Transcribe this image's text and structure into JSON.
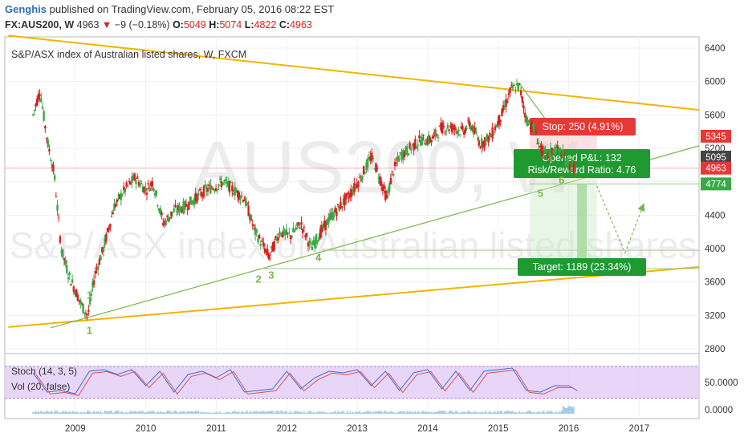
{
  "header": {
    "author": "Genghis",
    "published": "published on TradingView.com, February 05, 2016 08:22 EST",
    "symbol": "FX:AUS200, W",
    "last": "4963",
    "change": "−9 (−0.18%)",
    "o_label": "O:",
    "o": "5049",
    "h_label": "H:",
    "h": "5074",
    "l_label": "L:",
    "l": "4822",
    "c_label": "C:",
    "c": "4963"
  },
  "chart_data": {
    "type": "line",
    "title": "S&P/ASX index of Australian listed shares, W, FXCM",
    "watermark_symbol": "AUS200, W",
    "watermark_desc": "S&P/ASX index of Australian listed shares",
    "x_ticks": [
      "2009",
      "2010",
      "2011",
      "2012",
      "2013",
      "2014",
      "2015",
      "2016",
      "2017"
    ],
    "y_ticks": [
      "6400",
      "6000",
      "5600",
      "5200",
      "4800",
      "4400",
      "4000",
      "3600",
      "3200",
      "2800"
    ],
    "ylim": [
      2800,
      6400
    ],
    "price_series": {
      "x": [
        2008.4,
        2008.5,
        2008.6,
        2008.7,
        2008.8,
        2008.9,
        2009.0,
        2009.1,
        2009.18,
        2009.28,
        2009.4,
        2009.55,
        2009.7,
        2009.85,
        2010.0,
        2010.1,
        2010.25,
        2010.4,
        2010.55,
        2010.7,
        2010.85,
        2011.0,
        2011.1,
        2011.25,
        2011.4,
        2011.55,
        2011.62,
        2011.75,
        2011.9,
        2012.05,
        2012.2,
        2012.35,
        2012.45,
        2012.6,
        2012.75,
        2012.9,
        2013.05,
        2013.2,
        2013.3,
        2013.42,
        2013.5,
        2013.6,
        2013.75,
        2013.9,
        2014.05,
        2014.2,
        2014.35,
        2014.5,
        2014.6,
        2014.75,
        2014.9,
        2015.05,
        2015.18,
        2015.3,
        2015.4,
        2015.5,
        2015.6,
        2015.7,
        2015.8,
        2015.9,
        2016.0,
        2016.08
      ],
      "y": [
        5600,
        5900,
        5300,
        4900,
        4000,
        3700,
        3500,
        3300,
        3200,
        3700,
        4000,
        4500,
        4700,
        4850,
        4700,
        4800,
        4300,
        4450,
        4500,
        4600,
        4700,
        4750,
        4800,
        4700,
        4600,
        4200,
        4100,
        3900,
        4200,
        4150,
        4300,
        4000,
        4150,
        4350,
        4500,
        4650,
        4850,
        5100,
        4900,
        4600,
        4900,
        5100,
        5200,
        5300,
        5300,
        5450,
        5450,
        5400,
        5500,
        5250,
        5350,
        5600,
        5900,
        5950,
        5550,
        5450,
        5200,
        5100,
        5200,
        5150,
        5000,
        4963
      ]
    },
    "stoch_series": {
      "x": [
        2008.4,
        2008.6,
        2008.8,
        2009.0,
        2009.2,
        2009.4,
        2009.6,
        2009.8,
        2010.0,
        2010.2,
        2010.4,
        2010.6,
        2010.8,
        2011.0,
        2011.2,
        2011.4,
        2011.6,
        2011.8,
        2012.0,
        2012.2,
        2012.4,
        2012.6,
        2012.8,
        2013.0,
        2013.2,
        2013.4,
        2013.6,
        2013.8,
        2014.0,
        2014.2,
        2014.4,
        2014.6,
        2014.8,
        2015.0,
        2015.2,
        2015.4,
        2015.6,
        2015.8,
        2016.0,
        2016.08
      ],
      "y": [
        80,
        20,
        25,
        15,
        85,
        90,
        75,
        90,
        40,
        85,
        20,
        75,
        85,
        65,
        90,
        20,
        25,
        30,
        85,
        30,
        65,
        85,
        80,
        90,
        40,
        85,
        25,
        80,
        90,
        30,
        85,
        25,
        85,
        90,
        95,
        25,
        20,
        40,
        40,
        30
      ]
    },
    "stoch_label": "Stoch (14, 3, 5)",
    "vol_label": "Vol (20, false)",
    "osc_ticks": [
      "50.0000",
      "0.0000"
    ],
    "price_tags": [
      {
        "value": "5345",
        "color": "#e53935"
      },
      {
        "value": "5095",
        "color": "#444444"
      },
      {
        "value": "4963",
        "color": "#e53935"
      },
      {
        "value": "4774",
        "color": "#3aa845"
      }
    ],
    "position": {
      "stop": "Stop: 250 (4.91%)",
      "pnl": "Opened P&L: 132",
      "rr": "Risk/Reward Ratio: 4.76",
      "target": "Target: 1189 (23.34%)"
    },
    "wave_labels": [
      "1",
      "1",
      "2",
      "3",
      "4",
      "5",
      "6"
    ],
    "colors": {
      "up": "#3aa845",
      "down": "#d62020",
      "trend": "#f2b400",
      "wave": "#7ab648",
      "stoch_band": "#e0c8f7"
    }
  }
}
